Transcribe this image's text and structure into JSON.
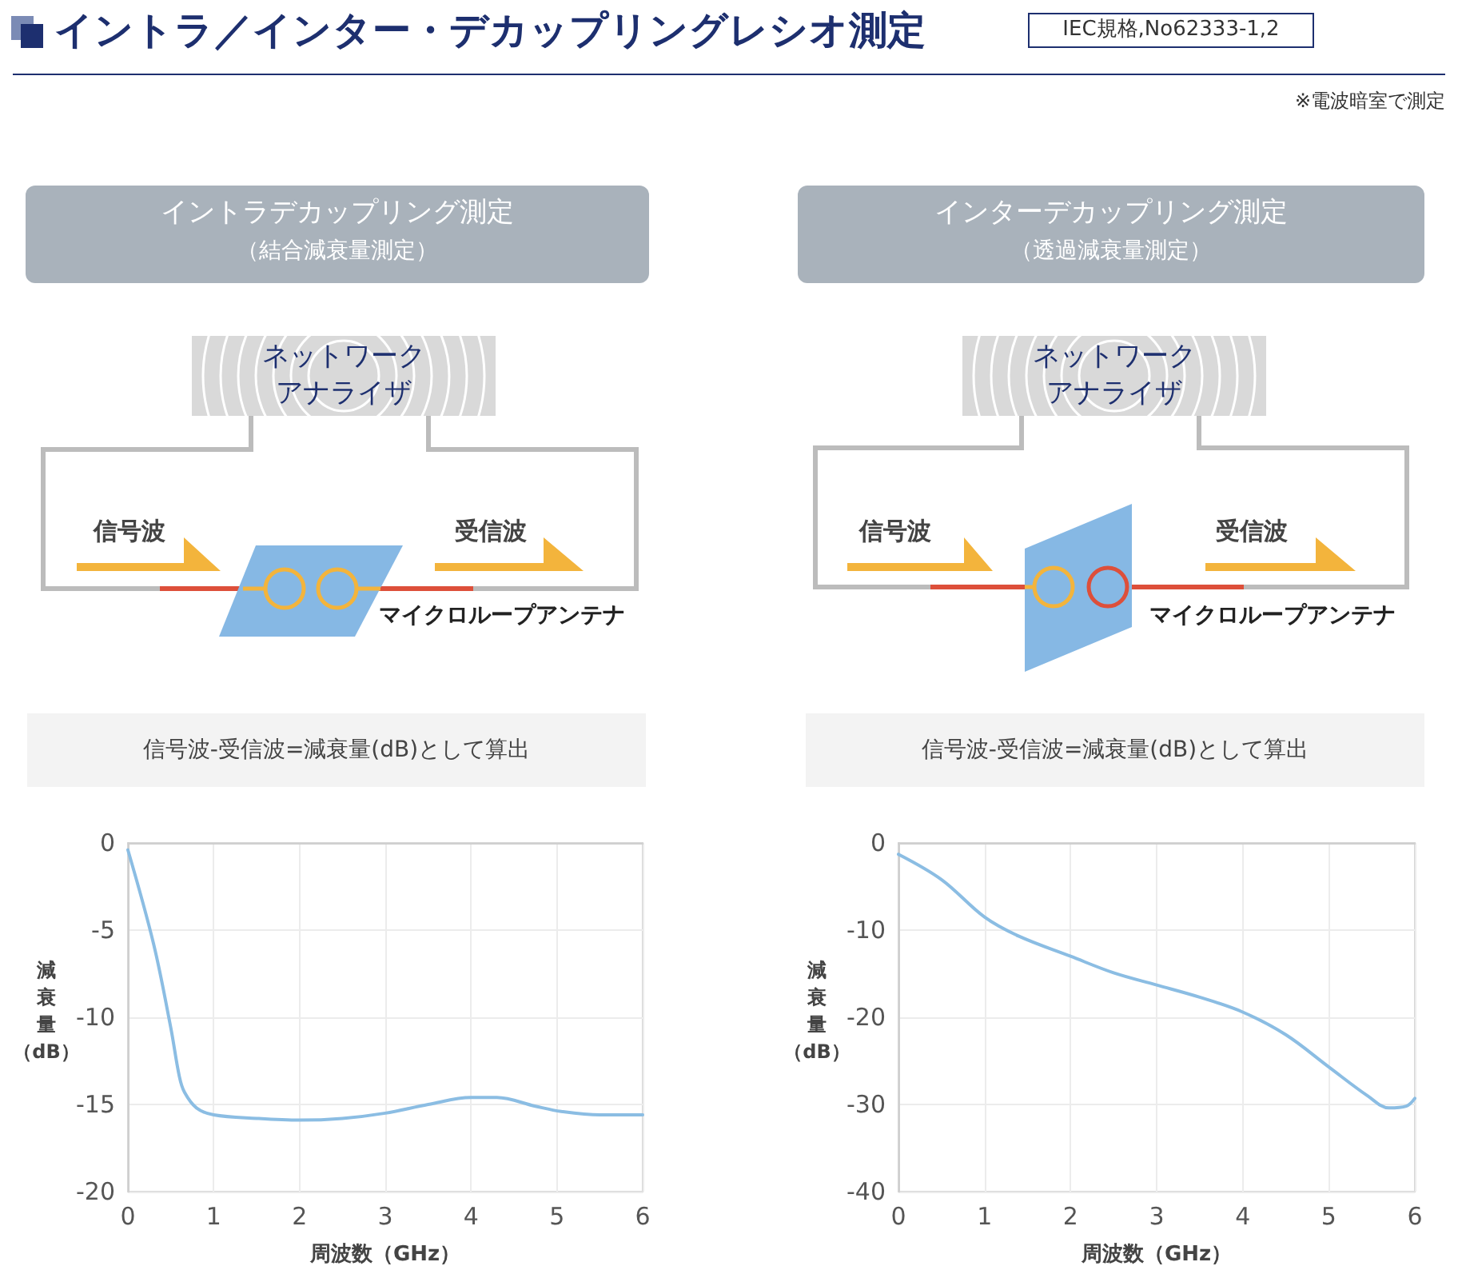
{
  "chart_data": [
    {
      "type": "other",
      "title": "イントラ／インター・デカップリングレシオ測定",
      "annotations": [
        "IEC規格,No62333-1,2",
        "※電波暗室で測定"
      ]
    },
    {
      "type": "line",
      "title": "イントラデカップリング測定",
      "subtitle": "（結合減衰量測定）",
      "annotations": [
        "ネットワークアナライザ",
        "信号波",
        "受信波",
        "マイクロループアンテナ",
        "信号波-受信波=減衰量(dB)として算出"
      ],
      "xlabel": "周波数（GHz）",
      "ylabel": "減衰量（dB）",
      "x": [
        0,
        0.3,
        0.5,
        0.6,
        0.66,
        0.8,
        1,
        1.5,
        2,
        2.5,
        3,
        3.5,
        4,
        4.3,
        4.75,
        5.05,
        5.5,
        6
      ],
      "values": [
        -0.4,
        -5.8,
        -10.6,
        -13.4,
        -14.3,
        -15.2,
        -15.6,
        -15.8,
        -15.9,
        -15.8,
        -15.5,
        -15,
        -14.6,
        -14.6,
        -15.1,
        -15.4,
        -15.6,
        -15.6
      ],
      "color": "#8bbde3",
      "xlim": [
        0,
        6
      ],
      "xticks": [
        0,
        1,
        2,
        3,
        4,
        5,
        6
      ],
      "ylim": [
        -20,
        0
      ],
      "yticks": [
        -20,
        -15,
        -10,
        -5,
        0
      ],
      "grid": true,
      "marker": "none"
    },
    {
      "type": "line",
      "title": "インターデカップリング測定",
      "subtitle": "（透過減衰量測定）",
      "annotations": [
        "ネットワークアナライザ",
        "信号波",
        "受信波",
        "マイクロループアンテナ",
        "信号波-受信波=減衰量(dB)として算出"
      ],
      "xlabel": "周波数（GHz）",
      "ylabel": "減衰量（dB）",
      "x": [
        0,
        0.5,
        1,
        1.4,
        2,
        2.5,
        3,
        3.5,
        4,
        4.5,
        5,
        5.45,
        5.7,
        5.9,
        6
      ],
      "values": [
        -1.3,
        -4.2,
        -8.5,
        -10.7,
        -13,
        -14.9,
        -16.3,
        -17.7,
        -19.4,
        -22,
        -25.7,
        -29,
        -30.4,
        -30.2,
        -29.3
      ],
      "color": "#8bbde3",
      "xlim": [
        0,
        6
      ],
      "xticks": [
        0,
        1,
        2,
        3,
        4,
        5,
        6
      ],
      "ylim": [
        -40,
        0
      ],
      "yticks": [
        -40,
        -30,
        -20,
        -10,
        0
      ],
      "grid": true,
      "marker": "none"
    }
  ]
}
